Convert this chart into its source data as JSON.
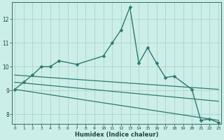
{
  "title": "",
  "xlabel": "Humidex (Indice chaleur)",
  "bg_color": "#cceee8",
  "grid_color": "#aacccc",
  "line_color": "#2a7a6f",
  "x_ticks": [
    0,
    1,
    2,
    3,
    4,
    5,
    6,
    7,
    8,
    9,
    10,
    11,
    12,
    13,
    14,
    15,
    16,
    17,
    18,
    19,
    20,
    21,
    22,
    23
  ],
  "y_ticks": [
    8,
    9,
    10,
    11,
    12
  ],
  "ylim": [
    7.6,
    12.7
  ],
  "xlim": [
    -0.3,
    23.3
  ],
  "series": [
    {
      "x": [
        0,
        1,
        2,
        3,
        4,
        5,
        7,
        10,
        11,
        12,
        13,
        14,
        15,
        16,
        17,
        18,
        20,
        21,
        22,
        23
      ],
      "y": [
        9.05,
        9.35,
        9.65,
        10.0,
        10.0,
        10.25,
        10.1,
        10.45,
        11.0,
        11.55,
        12.5,
        10.15,
        10.8,
        10.15,
        9.55,
        9.6,
        9.05,
        7.75,
        7.8,
        7.65
      ],
      "has_marker": true,
      "markersize": 2.5,
      "linewidth": 1.0
    },
    {
      "x": [
        0,
        23
      ],
      "y": [
        9.65,
        9.05
      ],
      "has_marker": false,
      "linewidth": 0.9
    },
    {
      "x": [
        0,
        23
      ],
      "y": [
        9.35,
        8.55
      ],
      "has_marker": false,
      "linewidth": 0.9
    },
    {
      "x": [
        0,
        23
      ],
      "y": [
        9.05,
        7.75
      ],
      "has_marker": false,
      "linewidth": 0.9
    }
  ]
}
